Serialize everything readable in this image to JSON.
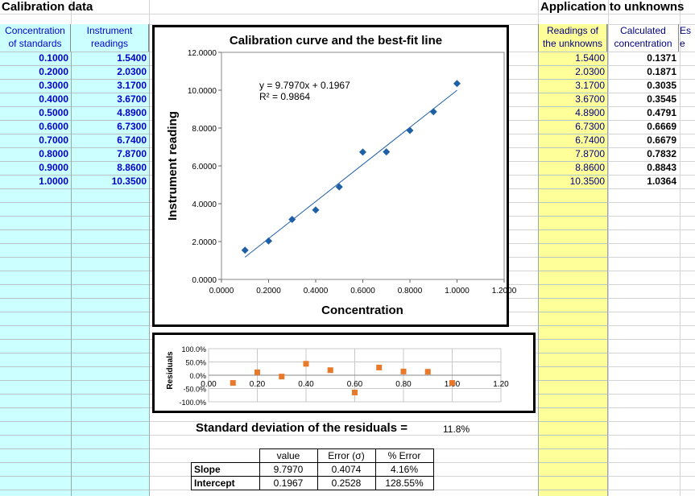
{
  "titles": {
    "calibration": "Calibration data",
    "application": "Application to unknowns"
  },
  "standards": {
    "conc_header_1": "Concentration",
    "conc_header_2": "of standards",
    "read_header_1": "Instrument",
    "read_header_2": "readings",
    "rows": [
      {
        "conc": "0.1000",
        "read": "1.5400"
      },
      {
        "conc": "0.2000",
        "read": "2.0300"
      },
      {
        "conc": "0.3000",
        "read": "3.1700"
      },
      {
        "conc": "0.4000",
        "read": "3.6700"
      },
      {
        "conc": "0.5000",
        "read": "4.8900"
      },
      {
        "conc": "0.6000",
        "read": "6.7300"
      },
      {
        "conc": "0.7000",
        "read": "6.7400"
      },
      {
        "conc": "0.8000",
        "read": "7.8700"
      },
      {
        "conc": "0.9000",
        "read": "8.8600"
      },
      {
        "conc": "1.0000",
        "read": "10.3500"
      }
    ]
  },
  "unknowns": {
    "read_header_1": "Readings of",
    "read_header_2": "the unknowns",
    "calc_header_1": "Calculated",
    "calc_header_2": "concentration",
    "extra_header_1": "Es",
    "extra_header_2": "e",
    "rows": [
      {
        "read": "1.5400",
        "calc": "0.1371"
      },
      {
        "read": "2.0300",
        "calc": "0.1871"
      },
      {
        "read": "3.1700",
        "calc": "0.3035"
      },
      {
        "read": "3.6700",
        "calc": "0.3545"
      },
      {
        "read": "4.8900",
        "calc": "0.4791"
      },
      {
        "read": "6.7300",
        "calc": "0.6669"
      },
      {
        "read": "6.7400",
        "calc": "0.6679"
      },
      {
        "read": "7.8700",
        "calc": "0.7832"
      },
      {
        "read": "8.8600",
        "calc": "0.8843"
      },
      {
        "read": "10.3500",
        "calc": "1.0364"
      }
    ]
  },
  "chart_data": [
    {
      "type": "scatter",
      "title": "Calibration curve and the best-fit line",
      "xlabel": "Concentration",
      "ylabel": "Instrument reading",
      "xlim": [
        0,
        1.2
      ],
      "ylim": [
        0,
        12
      ],
      "xticks": [
        "0.0000",
        "0.2000",
        "0.4000",
        "0.6000",
        "0.8000",
        "1.0000",
        "1.2000"
      ],
      "yticks": [
        "0.0000",
        "2.0000",
        "4.0000",
        "6.0000",
        "8.0000",
        "10.0000",
        "12.0000"
      ],
      "x": [
        0.1,
        0.2,
        0.3,
        0.4,
        0.5,
        0.6,
        0.7,
        0.8,
        0.9,
        1.0
      ],
      "y": [
        1.54,
        2.03,
        3.17,
        3.67,
        4.89,
        6.73,
        6.74,
        7.87,
        8.86,
        10.35
      ],
      "trendline": {
        "slope": 9.797,
        "intercept": 0.1967
      },
      "equation": "y = 9.7970x + 0.1967",
      "r2": "R² = 0.9864",
      "grid": false,
      "marker_color": "#1f5fa6"
    },
    {
      "type": "scatter",
      "title": "",
      "xlabel": "",
      "ylabel": "Residuals",
      "xlim": [
        0,
        1.2
      ],
      "ylim": [
        -1.0,
        1.0
      ],
      "xticks": [
        "0.00",
        "0.20",
        "0.40",
        "0.60",
        "0.80",
        "1.00",
        "1.20"
      ],
      "yticks": [
        "100.0%",
        "50.0%",
        "0.0%",
        "-50.0%",
        "-100.0%"
      ],
      "x": [
        0.1,
        0.2,
        0.3,
        0.4,
        0.5,
        0.6,
        0.7,
        0.8,
        0.9,
        1.0
      ],
      "y": [
        -0.29,
        0.11,
        -0.05,
        0.43,
        0.19,
        -0.65,
        0.29,
        0.14,
        0.13,
        -0.29
      ],
      "grid": true,
      "marker_color": "#e8782a"
    }
  ],
  "stdev": {
    "label": "Standard deviation of the residuals =",
    "value": "11.8%"
  },
  "stats": {
    "headers": [
      "",
      "value",
      "Error (σ)",
      "% Error"
    ],
    "rows": [
      {
        "name": "Slope",
        "value": "9.7970",
        "error": "0.4074",
        "pct": "4.16%"
      },
      {
        "name": "Intercept",
        "value": "0.1967",
        "error": "0.2528",
        "pct": "128.55%"
      }
    ]
  },
  "colors": {
    "cyan_fill": "#ccffff",
    "yellow_fill": "#ffff99",
    "blue_text": "#0000cc"
  }
}
